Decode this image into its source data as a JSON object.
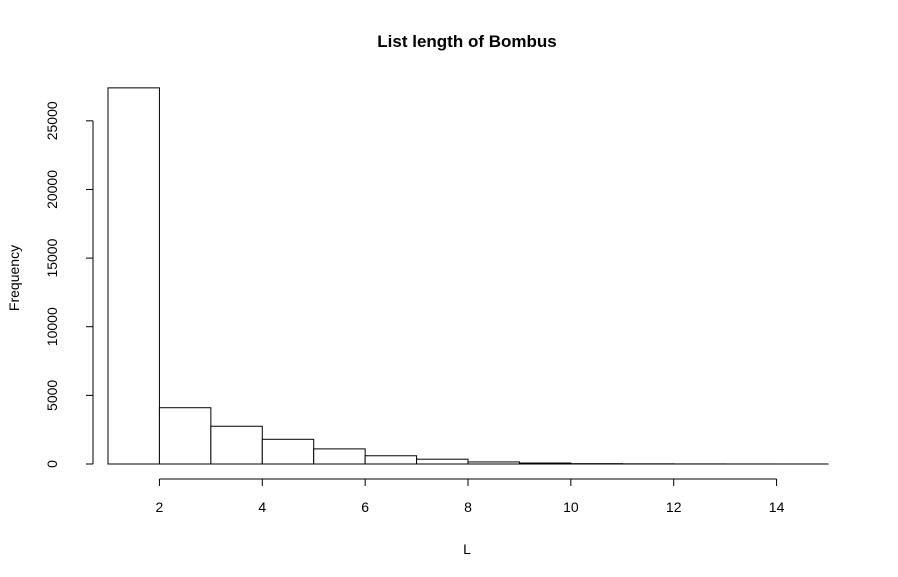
{
  "chart_data": {
    "type": "bar",
    "title": "List length of Bombus",
    "xlabel": "L",
    "ylabel": "Frequency",
    "xlim": [
      1,
      15
    ],
    "ylim": [
      0,
      27500
    ],
    "x_ticks": [
      2,
      4,
      6,
      8,
      10,
      12,
      14
    ],
    "y_ticks": [
      0,
      5000,
      10000,
      15000,
      20000,
      25000
    ],
    "bins": [
      {
        "x0": 1,
        "x1": 2,
        "value": 27400
      },
      {
        "x0": 2,
        "x1": 3,
        "value": 4100
      },
      {
        "x0": 3,
        "x1": 4,
        "value": 2750
      },
      {
        "x0": 4,
        "x1": 5,
        "value": 1800
      },
      {
        "x0": 5,
        "x1": 6,
        "value": 1100
      },
      {
        "x0": 6,
        "x1": 7,
        "value": 600
      },
      {
        "x0": 7,
        "x1": 8,
        "value": 350
      },
      {
        "x0": 8,
        "x1": 9,
        "value": 150
      },
      {
        "x0": 9,
        "x1": 10,
        "value": 70
      },
      {
        "x0": 10,
        "x1": 11,
        "value": 25
      },
      {
        "x0": 11,
        "x1": 12,
        "value": 12
      },
      {
        "x0": 12,
        "x1": 13,
        "value": 6
      },
      {
        "x0": 13,
        "x1": 14,
        "value": 3
      },
      {
        "x0": 14,
        "x1": 15,
        "value": 1
      }
    ],
    "grid": false,
    "legend": "none"
  }
}
